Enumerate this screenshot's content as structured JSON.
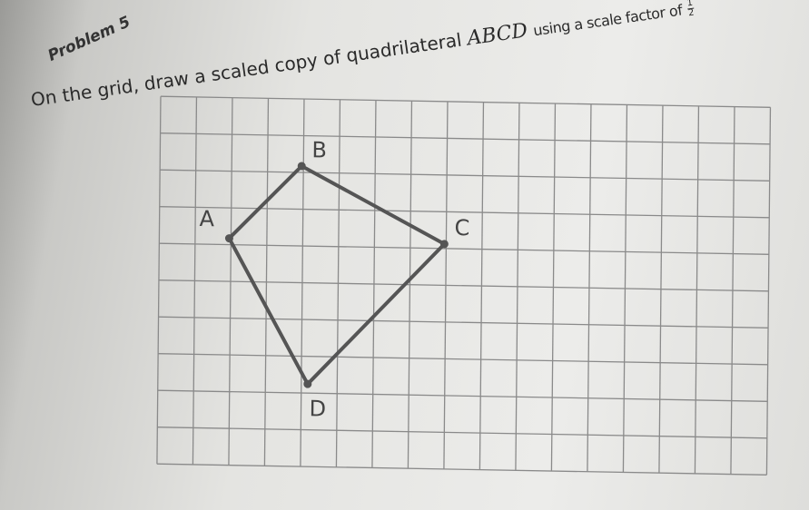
{
  "header": {
    "problem": "Problem 5",
    "instruction": "On the grid, draw a scaled copy of quadrilateral",
    "shape_name": "ABCD",
    "instruction_end": "using a scale factor of",
    "fraction_numerator": "1",
    "fraction_denominator": "2"
  },
  "figure": {
    "labels": [
      "A",
      "B",
      "C",
      "D"
    ]
  }
}
